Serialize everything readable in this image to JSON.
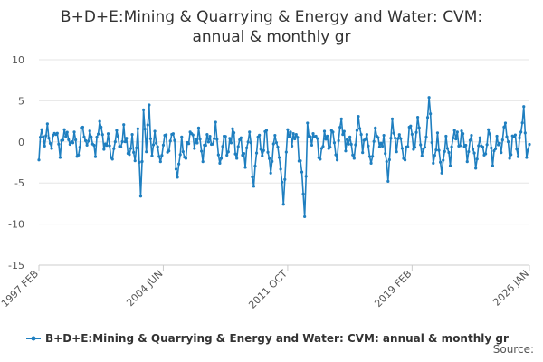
{
  "chart_data": {
    "type": "line",
    "title_line1": "B+D+E:Mining & Quarrying & Energy and Water: CVM:",
    "title_line2": "annual & monthly gr",
    "series_name": "B+D+E:Mining & Quarrying & Energy and Water: CVM: annual & monthly gr",
    "color": "#1f7fc0",
    "ylim": [
      -15,
      10
    ],
    "yticks": [
      10,
      5,
      0,
      -5,
      -10,
      -15
    ],
    "x_tick_labels": [
      "1997 FEB",
      "2004 JUN",
      "2011 OCT",
      "2019 FEB",
      "2026 JAN"
    ],
    "x_tick_index": [
      0,
      88,
      176,
      264,
      347
    ],
    "n_points": 348,
    "anchor_points": [
      [
        0,
        -2.2
      ],
      [
        2,
        1.5
      ],
      [
        4,
        -0.5
      ],
      [
        6,
        2.2
      ],
      [
        9,
        -0.8
      ],
      [
        12,
        0.9
      ],
      [
        15,
        -1.9
      ],
      [
        18,
        1.5
      ],
      [
        22,
        -0.3
      ],
      [
        25,
        1.2
      ],
      [
        28,
        -1.6
      ],
      [
        31,
        1.8
      ],
      [
        34,
        -0.4
      ],
      [
        37,
        0.6
      ],
      [
        40,
        -1.8
      ],
      [
        43,
        2.5
      ],
      [
        46,
        -0.9
      ],
      [
        49,
        1.0
      ],
      [
        52,
        -2.1
      ],
      [
        55,
        1.4
      ],
      [
        58,
        -0.6
      ],
      [
        60,
        2.1
      ],
      [
        63,
        -1.4
      ],
      [
        66,
        0.9
      ],
      [
        68,
        -2.3
      ],
      [
        70,
        1.6
      ],
      [
        72,
        -6.6
      ],
      [
        74,
        3.9
      ],
      [
        76,
        -1.2
      ],
      [
        78,
        4.5
      ],
      [
        80,
        -1.7
      ],
      [
        82,
        1.3
      ],
      [
        84,
        -0.6
      ],
      [
        86,
        -2.4
      ],
      [
        89,
        0.8
      ],
      [
        92,
        -1.1
      ],
      [
        95,
        1.0
      ],
      [
        98,
        -4.3
      ],
      [
        101,
        0.6
      ],
      [
        104,
        -2.0
      ],
      [
        107,
        1.2
      ],
      [
        110,
        -0.8
      ],
      [
        113,
        1.7
      ],
      [
        116,
        -2.4
      ],
      [
        119,
        0.9
      ],
      [
        122,
        -0.3
      ],
      [
        125,
        2.4
      ],
      [
        128,
        -2.6
      ],
      [
        131,
        0.7
      ],
      [
        134,
        -1.2
      ],
      [
        137,
        1.6
      ],
      [
        140,
        -2.0
      ],
      [
        143,
        0.5
      ],
      [
        146,
        -3.1
      ],
      [
        149,
        1.2
      ],
      [
        152,
        -5.4
      ],
      [
        155,
        0.6
      ],
      [
        158,
        -1.7
      ],
      [
        161,
        1.4
      ],
      [
        164,
        -3.8
      ],
      [
        167,
        0.8
      ],
      [
        170,
        -1.9
      ],
      [
        173,
        -7.6
      ],
      [
        176,
        1.5
      ],
      [
        179,
        -0.5
      ],
      [
        182,
        0.9
      ],
      [
        185,
        -2.3
      ],
      [
        188,
        -9.1
      ],
      [
        190,
        2.3
      ],
      [
        193,
        -0.4
      ],
      [
        196,
        0.7
      ],
      [
        199,
        -2.1
      ],
      [
        202,
        1.3
      ],
      [
        205,
        -0.8
      ],
      [
        208,
        1.2
      ],
      [
        211,
        -2.2
      ],
      [
        214,
        2.8
      ],
      [
        217,
        -1.1
      ],
      [
        220,
        0.6
      ],
      [
        223,
        -2.0
      ],
      [
        226,
        3.1
      ],
      [
        229,
        -1.3
      ],
      [
        232,
        0.9
      ],
      [
        235,
        -2.6
      ],
      [
        238,
        1.7
      ],
      [
        241,
        -0.6
      ],
      [
        244,
        0.8
      ],
      [
        247,
        -4.8
      ],
      [
        250,
        2.8
      ],
      [
        253,
        -1.2
      ],
      [
        256,
        0.4
      ],
      [
        259,
        -2.2
      ],
      [
        262,
        1.8
      ],
      [
        265,
        -0.9
      ],
      [
        268,
        3.0
      ],
      [
        271,
        -1.7
      ],
      [
        274,
        0.6
      ],
      [
        276,
        5.4
      ],
      [
        279,
        -2.6
      ],
      [
        282,
        1.1
      ],
      [
        285,
        -3.8
      ],
      [
        288,
        0.7
      ],
      [
        291,
        -2.9
      ],
      [
        294,
        1.4
      ],
      [
        297,
        -0.5
      ],
      [
        300,
        1.0
      ],
      [
        303,
        -2.4
      ],
      [
        306,
        0.8
      ],
      [
        309,
        -3.2
      ],
      [
        312,
        0.5
      ],
      [
        315,
        -1.6
      ],
      [
        318,
        1.5
      ],
      [
        321,
        -2.9
      ],
      [
        324,
        0.7
      ],
      [
        327,
        -1.3
      ],
      [
        330,
        2.3
      ],
      [
        333,
        -2.0
      ],
      [
        336,
        0.6
      ],
      [
        339,
        -1.8
      ],
      [
        341,
        1.2
      ],
      [
        343,
        4.3
      ],
      [
        345,
        -1.9
      ],
      [
        347,
        -0.3
      ]
    ]
  },
  "legend_label": "B+D+E:Mining & Quarrying & Energy and Water: CVM: annual & monthly gr",
  "source_label": "Source:"
}
